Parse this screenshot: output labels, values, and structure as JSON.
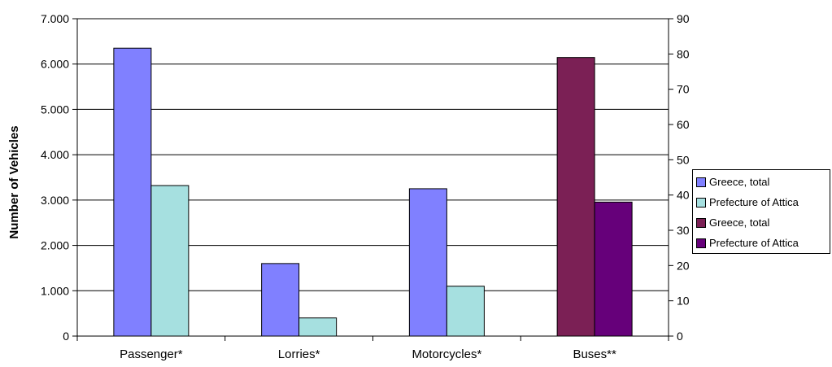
{
  "chart_data": {
    "type": "bar",
    "categories": [
      "Passenger*",
      "Lorries*",
      "Motorcycles*",
      "Buses**"
    ],
    "ylabel": "Number of Vehicles",
    "y_left": {
      "min": 0,
      "max": 7000,
      "step": 1000,
      "ticks": [
        "0",
        "1.000",
        "2.000",
        "3.000",
        "4.000",
        "5.000",
        "6.000",
        "7.000"
      ]
    },
    "y_right": {
      "min": 0,
      "max": 90,
      "step": 10,
      "ticks": [
        "0",
        "10",
        "20",
        "30",
        "40",
        "50",
        "60",
        "70",
        "80",
        "90"
      ]
    },
    "grid": true,
    "legend_position": "right",
    "series": [
      {
        "name": "Greece, total",
        "axis": "left",
        "color": "#8080ff",
        "values": [
          6350,
          1600,
          3250,
          null
        ]
      },
      {
        "name": "Prefecture of Attica",
        "axis": "left",
        "color": "#a6e0e0",
        "values": [
          3320,
          400,
          1100,
          null
        ]
      },
      {
        "name": "Greece, total",
        "axis": "right",
        "color": "#7b2055",
        "values": [
          null,
          null,
          null,
          79
        ]
      },
      {
        "name": "Prefecture of Attica",
        "axis": "right",
        "color": "#66007a",
        "values": [
          null,
          null,
          null,
          38
        ]
      }
    ]
  }
}
